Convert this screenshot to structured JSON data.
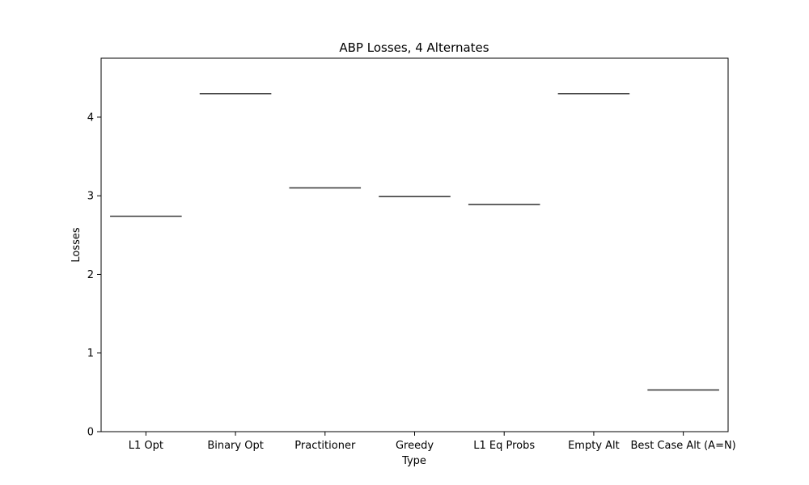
{
  "chart_data": {
    "type": "box",
    "title": "ABP Losses, 4 Alternates",
    "xlabel": "Type",
    "ylabel": "Losses",
    "categories": [
      "L1 Opt",
      "Binary Opt",
      "Practitioner",
      "Greedy",
      "L1 Eq Probs",
      "Empty Alt",
      "Best Case Alt (A=N)"
    ],
    "values": [
      2.74,
      4.3,
      3.1,
      2.99,
      2.89,
      4.3,
      0.53
    ],
    "ylim": [
      0,
      4.75
    ],
    "yticks": [
      0,
      1,
      2,
      3,
      4
    ],
    "grid": false,
    "line_color": "#3f3f3f"
  }
}
